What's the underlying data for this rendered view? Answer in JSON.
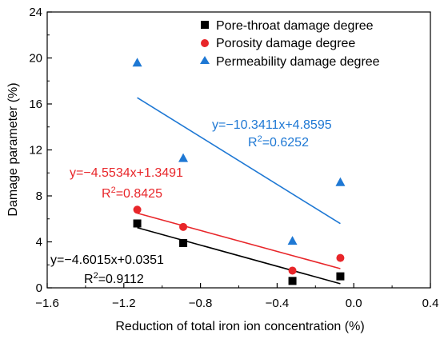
{
  "chart_data": {
    "type": "scatter",
    "xlabel": "Reduction of total iron ion concentration (%)",
    "ylabel": "Damage parameter (%)",
    "xlim": [
      -1.6,
      0.4
    ],
    "ylim": [
      0,
      24
    ],
    "x_ticks": [
      -1.6,
      -1.2,
      -0.8,
      -0.4,
      0.0,
      0.4
    ],
    "x_tick_labels": [
      "−1.6",
      "−1.2",
      "−0.8",
      "−0.4",
      "0.0",
      "0.4"
    ],
    "y_ticks": [
      0,
      4,
      8,
      12,
      16,
      20,
      24
    ],
    "y_tick_labels": [
      "0",
      "4",
      "8",
      "12",
      "16",
      "20",
      "24"
    ],
    "grid": false,
    "legend_position": "top-right",
    "series": [
      {
        "name": "Pore-throat damage degree",
        "marker": "square",
        "color": "#000000",
        "x": [
          -1.13,
          -0.89,
          -0.32,
          -0.07
        ],
        "y": [
          5.6,
          3.9,
          0.6,
          1.0
        ],
        "fit": {
          "slope": -4.6015,
          "intercept": 0.0351,
          "x_range": [
            -1.13,
            -0.07
          ]
        },
        "equation": "y=−4.6015x+0.0351",
        "r2_label": "R",
        "r2_exp": "2",
        "r2_value": "=0.9112"
      },
      {
        "name": "Porosity damage degree",
        "marker": "circle",
        "color": "#e8262a",
        "x": [
          -1.13,
          -0.89,
          -0.32,
          -0.07
        ],
        "y": [
          6.8,
          5.3,
          1.5,
          2.6
        ],
        "fit": {
          "slope": -4.5534,
          "intercept": 1.3491,
          "x_range": [
            -1.13,
            -0.07
          ]
        },
        "equation": "y=−4.5534x+1.3491",
        "r2_label": "R",
        "r2_exp": "2",
        "r2_value": "=0.8425"
      },
      {
        "name": "Permeability damage degree",
        "marker": "triangle",
        "color": "#1e78d4",
        "x": [
          -1.13,
          -0.89,
          -0.32,
          -0.07
        ],
        "y": [
          19.6,
          11.3,
          4.1,
          9.2
        ],
        "fit": {
          "slope": -10.3411,
          "intercept": 4.8595,
          "x_range": [
            -1.13,
            -0.07
          ]
        },
        "equation": "y=−10.3411x+4.8595",
        "r2_label": "R",
        "r2_exp": "2",
        "r2_value": "=0.6252"
      }
    ]
  }
}
